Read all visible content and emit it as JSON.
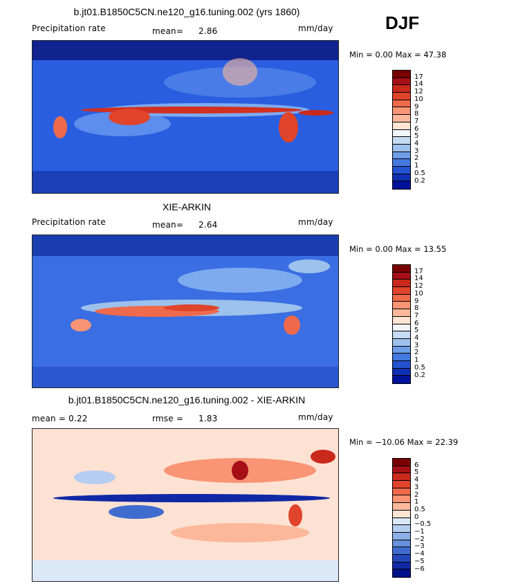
{
  "season": "DJF",
  "panels": [
    {
      "title": "b.jt01.B1850C5CN.ne120_g16.tuning.002 (yrs 1860)",
      "left_label": "Precipitation rate",
      "mid_label": "mean=",
      "mid_value": "2.86",
      "units": "mm/day",
      "minmax": "Min =    0.00 Max =   47.38",
      "colorbar": {
        "labels": [
          "17",
          "14",
          "12",
          "10",
          "9",
          "8",
          "7",
          "6",
          "5",
          "4",
          "3",
          "2",
          "1",
          "0.5",
          "0.2"
        ],
        "colors": [
          "#7a0000",
          "#a50f15",
          "#c92a1c",
          "#e0442a",
          "#ef6a4c",
          "#f99474",
          "#fcb89a",
          "#fee4d2",
          "#f2f5fc",
          "#c6dbf4",
          "#9cc1ec",
          "#6d9ee6",
          "#4479e0",
          "#2353d0",
          "#1030b4",
          "#00129a"
        ]
      }
    },
    {
      "title": "XIE-ARKIN",
      "left_label": "Precipitation rate",
      "mid_label": "mean=",
      "mid_value": "2.64",
      "units": "mm/day",
      "minmax": "Min =    0.00 Max =   13.55",
      "colorbar": {
        "labels": [
          "17",
          "14",
          "12",
          "10",
          "9",
          "8",
          "7",
          "6",
          "5",
          "4",
          "3",
          "2",
          "1",
          "0.5",
          "0.2"
        ],
        "colors": [
          "#7a0000",
          "#a50f15",
          "#c92a1c",
          "#e0442a",
          "#ef6a4c",
          "#f99474",
          "#fcb89a",
          "#fee4d2",
          "#f2f5fc",
          "#c6dbf4",
          "#9cc1ec",
          "#6d9ee6",
          "#4479e0",
          "#2353d0",
          "#1030b4",
          "#00129a"
        ]
      }
    },
    {
      "title": "b.jt01.B1850C5CN.ne120_g16.tuning.002 - XIE-ARKIN",
      "left_label": "mean =    0.22",
      "mid_label": "rmse =",
      "mid_value": "1.83",
      "units": "mm/day",
      "minmax": "Min = −10.06 Max =   22.39",
      "colorbar": {
        "labels": [
          "6",
          "5",
          "4",
          "3",
          "2",
          "1",
          "0.5",
          "0",
          "−0.5",
          "−1",
          "−2",
          "−3",
          "−4",
          "−5",
          "−6"
        ],
        "colors": [
          "#7a0000",
          "#a50f15",
          "#c92a1c",
          "#e0442a",
          "#ef6a4c",
          "#f99474",
          "#fcb89a",
          "#fee4d2",
          "#dbe8f8",
          "#b4cdf0",
          "#8db0e8",
          "#6690dc",
          "#3f6ccf",
          "#2348bd",
          "#1028a6",
          "#00128a"
        ]
      }
    }
  ],
  "chart_data": [
    {
      "type": "heatmap",
      "title": "b.jt01.B1850C5CN.ne120_g16.tuning.002 (yrs 1860)",
      "variable": "Precipitation rate",
      "units": "mm/day",
      "season": "DJF",
      "mean": 2.86,
      "min": 0.0,
      "max": 47.38,
      "levels": [
        0.2,
        0.5,
        1,
        2,
        3,
        4,
        5,
        6,
        7,
        8,
        9,
        10,
        12,
        14,
        17
      ]
    },
    {
      "type": "heatmap",
      "title": "XIE-ARKIN",
      "variable": "Precipitation rate",
      "units": "mm/day",
      "season": "DJF",
      "mean": 2.64,
      "min": 0.0,
      "max": 13.55,
      "levels": [
        0.2,
        0.5,
        1,
        2,
        3,
        4,
        5,
        6,
        7,
        8,
        9,
        10,
        12,
        14,
        17
      ]
    },
    {
      "type": "heatmap",
      "title": "b.jt01.B1850C5CN.ne120_g16.tuning.002 - XIE-ARKIN",
      "units": "mm/day",
      "season": "DJF",
      "mean": 0.22,
      "rmse": 1.83,
      "min": -10.06,
      "max": 22.39,
      "levels": [
        -6,
        -5,
        -4,
        -3,
        -2,
        -1,
        -0.5,
        0,
        0.5,
        1,
        2,
        3,
        4,
        5,
        6
      ]
    }
  ]
}
